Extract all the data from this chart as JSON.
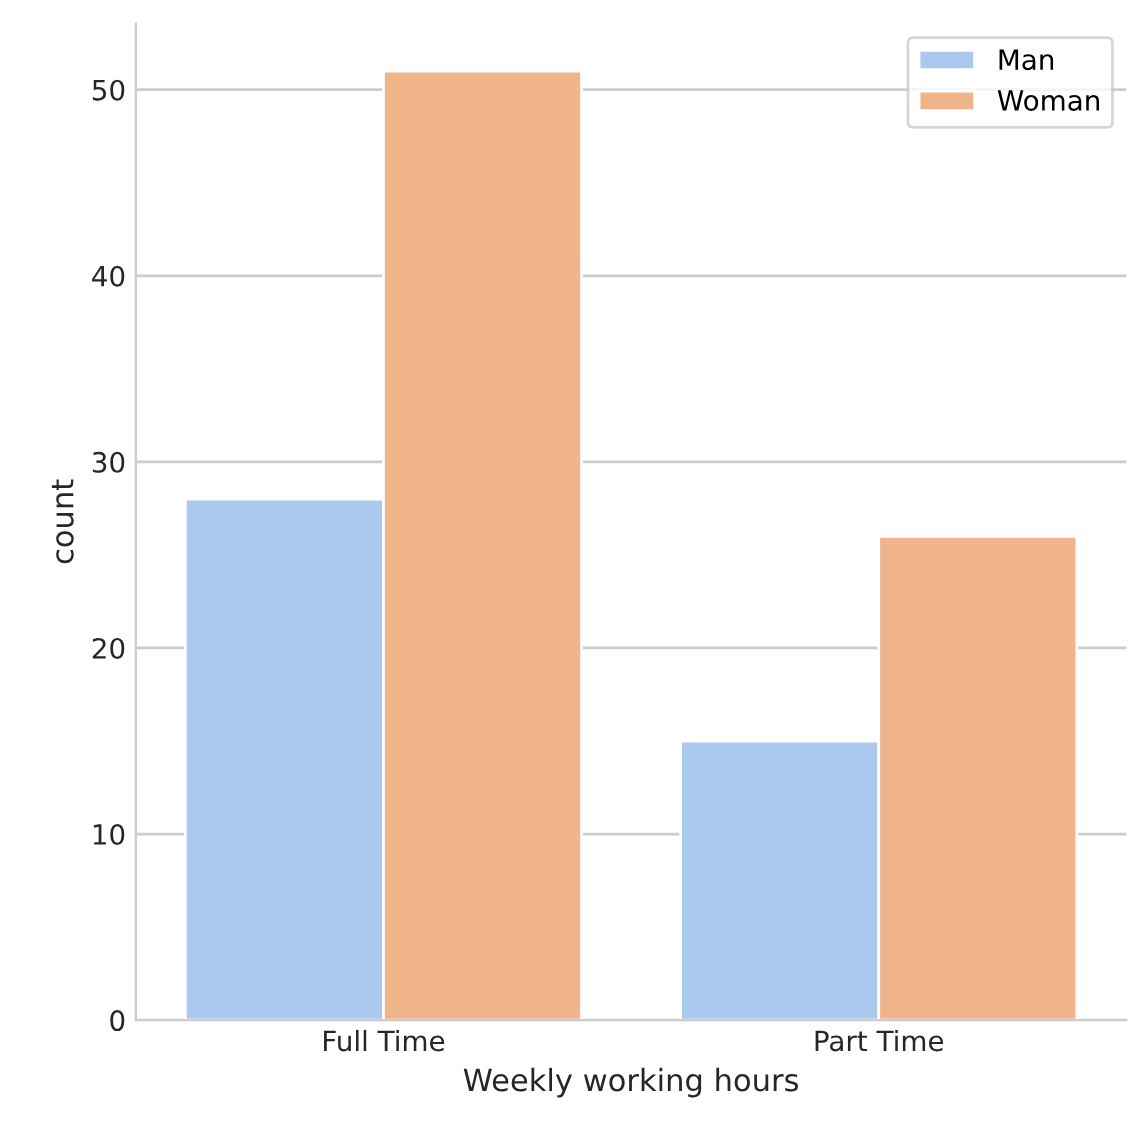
{
  "chart_data": {
    "type": "bar",
    "xlabel": "Weekly working hours",
    "ylabel": "count",
    "categories": [
      "Full Time",
      "Part Time"
    ],
    "series": [
      {
        "name": "Man",
        "color": "#abc8ee",
        "values": [
          28,
          15
        ]
      },
      {
        "name": "Woman",
        "color": "#f0b48b",
        "values": [
          51,
          26
        ]
      }
    ],
    "ylim": [
      0,
      53.55
    ],
    "yticks": [
      0,
      10,
      20,
      30,
      40,
      50
    ],
    "grid": "y",
    "legend": "top right"
  }
}
